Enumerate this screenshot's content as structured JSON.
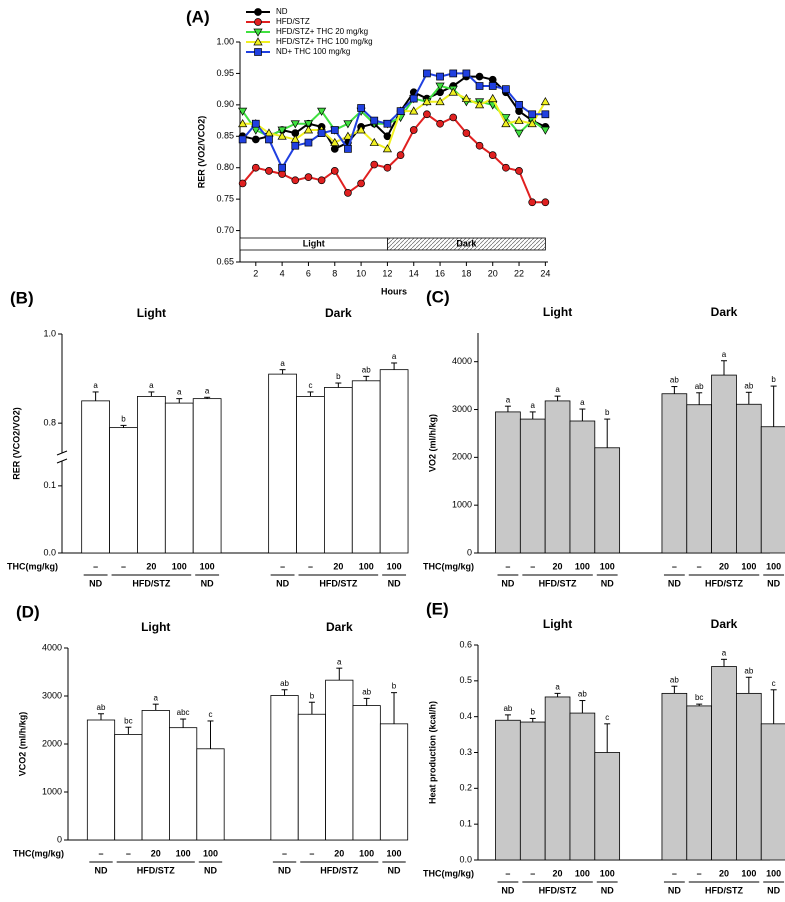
{
  "chart_data": [
    {
      "type": "line",
      "panel_label": "(A)",
      "x_label": "Hours",
      "y_label": "RER (VO2/VCO2)",
      "x": [
        1,
        2,
        3,
        4,
        5,
        6,
        7,
        8,
        9,
        10,
        11,
        12,
        13,
        14,
        15,
        16,
        17,
        18,
        19,
        20,
        21,
        22,
        23,
        24
      ],
      "xlim": [
        0.8,
        24.2
      ],
      "xticks": [
        2,
        4,
        6,
        8,
        10,
        12,
        14,
        16,
        18,
        20,
        22,
        24
      ],
      "ylim": [
        0.65,
        1.0
      ],
      "yticks": [
        0.65,
        {
          "value": 0.7,
          "label": "0.70"
        },
        0.75,
        {
          "value": 0.8,
          "label": "0.80"
        },
        0.85,
        {
          "value": 0.9,
          "label": "0.90"
        },
        0.95,
        {
          "value": 1.0,
          "label": "1.00"
        }
      ],
      "phases": [
        {
          "label": "Light",
          "range": [
            0,
            12
          ]
        },
        {
          "label": "Dark",
          "range": [
            12,
            24
          ]
        }
      ],
      "legend": "upper left",
      "series": [
        {
          "name": "ND",
          "color": "#000000",
          "marker": "circle",
          "values": [
            0.85,
            0.845,
            0.85,
            0.86,
            0.855,
            0.87,
            0.865,
            0.83,
            0.84,
            0.865,
            0.87,
            0.85,
            0.89,
            0.92,
            0.91,
            0.92,
            0.93,
            0.945,
            0.945,
            0.94,
            0.92,
            0.89,
            0.875,
            0.865
          ]
        },
        {
          "name": "HFD/STZ",
          "color": "#e02020",
          "marker": "circle",
          "values": [
            0.775,
            0.8,
            0.795,
            0.79,
            0.78,
            0.785,
            0.78,
            0.795,
            0.76,
            0.775,
            0.805,
            0.8,
            0.82,
            0.86,
            0.885,
            0.87,
            0.88,
            0.855,
            0.835,
            0.82,
            0.8,
            0.795,
            0.745,
            0.745
          ]
        },
        {
          "name": "HFD/STZ+ THC 20 mg/kg",
          "color": "#40e040",
          "marker": "triangle-down",
          "values": [
            0.89,
            0.86,
            0.85,
            0.86,
            0.87,
            0.87,
            0.89,
            0.86,
            0.87,
            0.89,
            0.87,
            0.87,
            0.88,
            0.91,
            0.905,
            0.93,
            0.925,
            0.905,
            0.905,
            0.9,
            0.88,
            0.855,
            0.875,
            0.86
          ]
        },
        {
          "name": "HFD/STZ+ THC 100 mg/kg",
          "color": "#f0f020",
          "marker": "triangle-up",
          "values": [
            0.87,
            0.87,
            0.855,
            0.85,
            0.845,
            0.86,
            0.86,
            0.84,
            0.85,
            0.86,
            0.84,
            0.83,
            0.89,
            0.89,
            0.905,
            0.905,
            0.92,
            0.91,
            0.9,
            0.91,
            0.87,
            0.875,
            0.87,
            0.905
          ]
        },
        {
          "name": "ND+ THC 100 mg/kg",
          "color": "#2040e0",
          "marker": "square",
          "values": [
            0.845,
            0.87,
            0.845,
            0.8,
            0.835,
            0.84,
            0.855,
            0.86,
            0.83,
            0.895,
            0.875,
            0.87,
            0.89,
            0.91,
            0.95,
            0.945,
            0.95,
            0.95,
            0.93,
            0.93,
            0.925,
            0.9,
            0.885,
            0.885
          ]
        }
      ]
    },
    {
      "type": "bar",
      "panel_label": "(B)",
      "y_label": "RER (VCO2/VO2)",
      "categories": [
        "Light",
        "Dark"
      ],
      "color": "#ffffff",
      "ylim": [
        0,
        1.0
      ],
      "ybreak": [
        0.137,
        0.733
      ],
      "yticks": [
        {
          "value": 0,
          "label": "0.0"
        },
        0.1,
        0.8,
        {
          "value": 1.0,
          "label": "1.0"
        }
      ],
      "dose_title": "THC(mg/kg)",
      "dose_labels": [
        "–",
        "–",
        "20",
        "100",
        "100"
      ],
      "group_labels": [
        "ND",
        "HFD/STZ",
        "ND"
      ],
      "series": [
        {
          "values": [
            0.85,
            0.91
          ],
          "errors": [
            0.02,
            0.01
          ],
          "letters": [
            "a",
            "a"
          ]
        },
        {
          "values": [
            0.79,
            0.86
          ],
          "errors": [
            0.005,
            0.01
          ],
          "letters": [
            "b",
            "c"
          ]
        },
        {
          "values": [
            0.86,
            0.88
          ],
          "errors": [
            0.01,
            0.01
          ],
          "letters": [
            "a",
            "b"
          ]
        },
        {
          "values": [
            0.845,
            0.895
          ],
          "errors": [
            0.01,
            0.01
          ],
          "letters": [
            "a",
            "ab"
          ]
        },
        {
          "values": [
            0.855,
            0.92
          ],
          "errors": [
            0.003,
            0.015
          ],
          "letters": [
            "a",
            "a"
          ]
        }
      ]
    },
    {
      "type": "bar",
      "panel_label": "(C)",
      "y_label": "VO2 (ml/h/kg)",
      "categories": [
        "Light",
        "Dark"
      ],
      "color": "#c8c8c8",
      "ylim": [
        0,
        4600
      ],
      "yticks": [
        0,
        1000,
        2000,
        3000,
        4000
      ],
      "dose_title": "THC(mg/kg)",
      "dose_labels": [
        "–",
        "–",
        "20",
        "100",
        "100"
      ],
      "group_labels": [
        "ND",
        "HFD/STZ",
        "ND"
      ],
      "series": [
        {
          "values": [
            2950,
            3330
          ],
          "errors": [
            120,
            150
          ],
          "letters": [
            "a",
            "ab"
          ]
        },
        {
          "values": [
            2800,
            3100
          ],
          "errors": [
            150,
            250
          ],
          "letters": [
            "a",
            "ab"
          ]
        },
        {
          "values": [
            3180,
            3720
          ],
          "errors": [
            100,
            300
          ],
          "letters": [
            "a",
            "a"
          ]
        },
        {
          "values": [
            2760,
            3110
          ],
          "errors": [
            250,
            250
          ],
          "letters": [
            "a",
            "ab"
          ]
        },
        {
          "values": [
            2200,
            2640
          ],
          "errors": [
            600,
            850
          ],
          "letters": [
            "b",
            "b"
          ]
        }
      ]
    },
    {
      "type": "bar",
      "panel_label": "(D)",
      "y_label": "VCO2 (ml/h/kg)",
      "categories": [
        "Light",
        "Dark"
      ],
      "color": "#ffffff",
      "ylim": [
        0,
        4000
      ],
      "yticks": [
        0,
        1000,
        2000,
        3000,
        4000
      ],
      "dose_title": "THC(mg/kg)",
      "dose_labels": [
        "–",
        "–",
        "20",
        "100",
        "100"
      ],
      "group_labels": [
        "ND",
        "HFD/STZ",
        "ND"
      ],
      "series": [
        {
          "values": [
            2500,
            3010
          ],
          "errors": [
            130,
            120
          ],
          "letters": [
            "ab",
            "ab"
          ]
        },
        {
          "values": [
            2200,
            2620
          ],
          "errors": [
            150,
            250
          ],
          "letters": [
            "bc",
            "b"
          ]
        },
        {
          "values": [
            2700,
            3330
          ],
          "errors": [
            130,
            250
          ],
          "letters": [
            "a",
            "a"
          ]
        },
        {
          "values": [
            2340,
            2800
          ],
          "errors": [
            180,
            150
          ],
          "letters": [
            "abc",
            "ab"
          ]
        },
        {
          "values": [
            1900,
            2420
          ],
          "errors": [
            580,
            650
          ],
          "letters": [
            "c",
            "b"
          ]
        }
      ]
    },
    {
      "type": "bar",
      "panel_label": "(E)",
      "y_label": "Heat production (kcal/h)",
      "categories": [
        "Light",
        "Dark"
      ],
      "color": "#c8c8c8",
      "ylim": [
        0,
        0.6
      ],
      "yticks": [
        {
          "value": 0,
          "label": "0.0"
        },
        0.1,
        0.2,
        0.3,
        0.4,
        0.5,
        0.6
      ],
      "dose_title": "THC(mg/kg)",
      "dose_labels": [
        "–",
        "–",
        "20",
        "100",
        "100"
      ],
      "group_labels": [
        "ND",
        "HFD/STZ",
        "ND"
      ],
      "series": [
        {
          "values": [
            0.39,
            0.465
          ],
          "errors": [
            0.015,
            0.02
          ],
          "letters": [
            "ab",
            "ab"
          ]
        },
        {
          "values": [
            0.385,
            0.43
          ],
          "errors": [
            0.01,
            0.005
          ],
          "letters": [
            "b",
            "bc"
          ]
        },
        {
          "values": [
            0.455,
            0.54
          ],
          "errors": [
            0.01,
            0.02
          ],
          "letters": [
            "a",
            "a"
          ]
        },
        {
          "values": [
            0.41,
            0.465
          ],
          "errors": [
            0.035,
            0.045
          ],
          "letters": [
            "ab",
            "ab"
          ]
        },
        {
          "values": [
            0.3,
            0.38
          ],
          "errors": [
            0.08,
            0.095
          ],
          "letters": [
            "c",
            "c"
          ]
        }
      ]
    }
  ]
}
